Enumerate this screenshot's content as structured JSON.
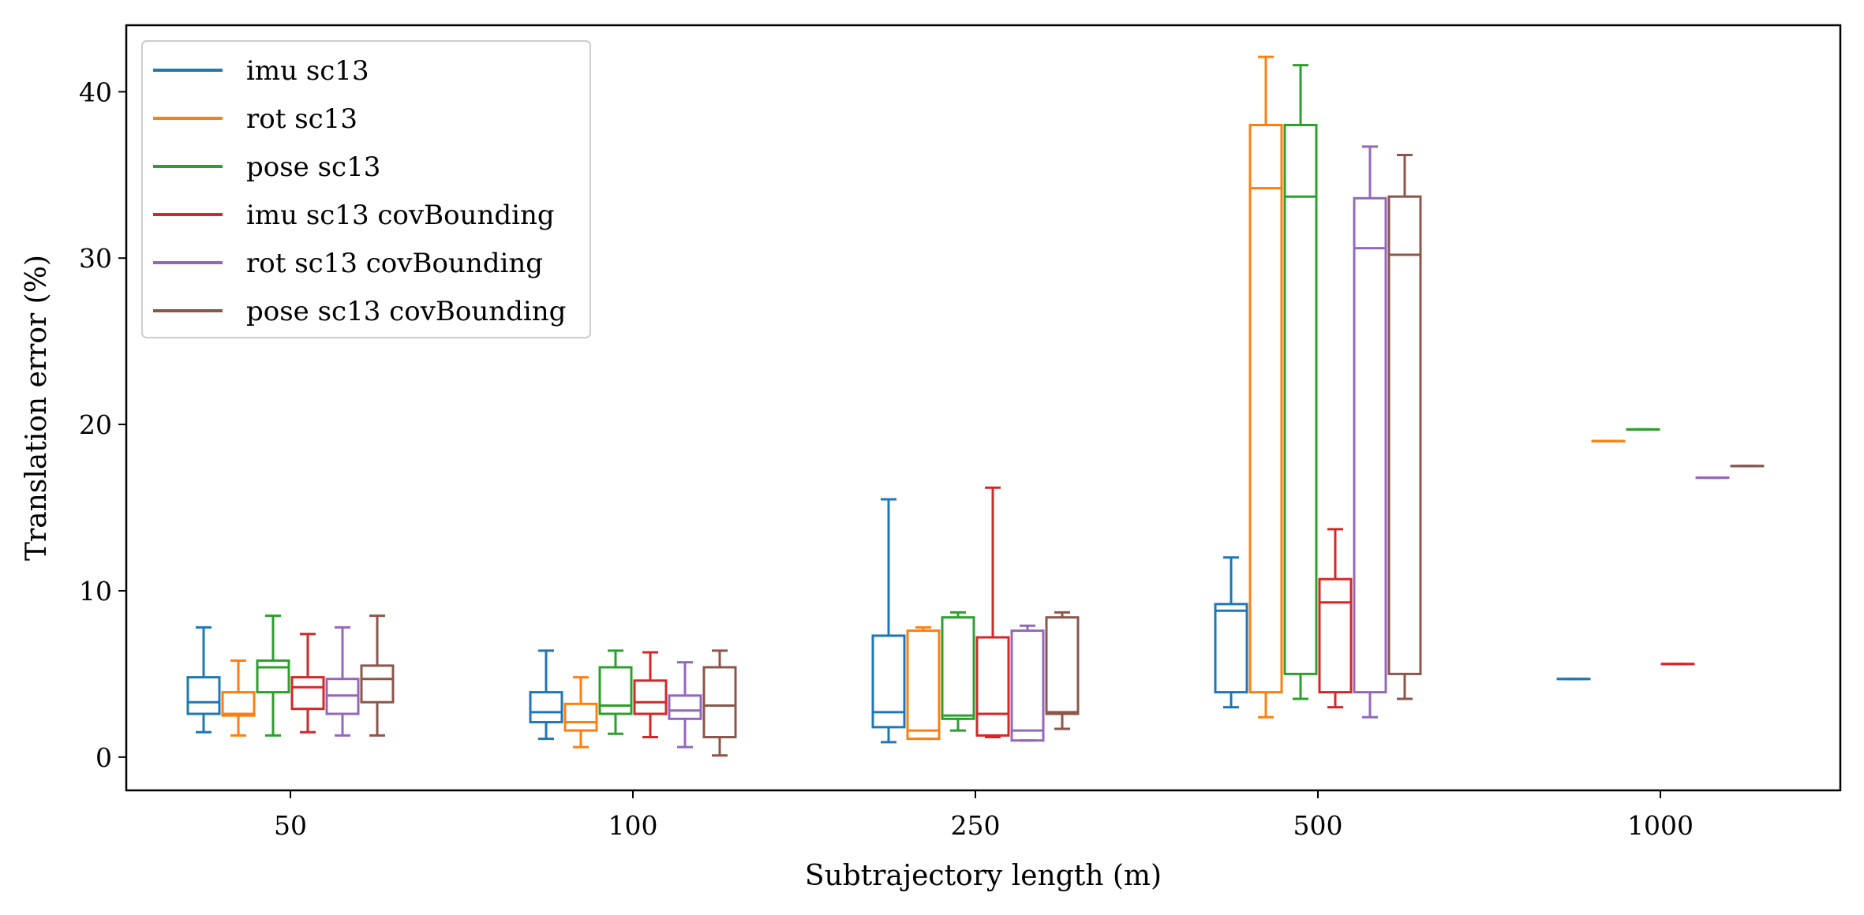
{
  "chart_data": {
    "type": "box",
    "xlabel": "Subtrajectory length (m)",
    "ylabel": "Translation error (%)",
    "categories": [
      "50",
      "100",
      "250",
      "500",
      "1000"
    ],
    "ylim": [
      -2,
      44
    ],
    "yticks": [
      0,
      10,
      20,
      30,
      40
    ],
    "grid": false,
    "legend_position": "top-left",
    "series": [
      {
        "name": "imu sc13",
        "color": "#1f77b4",
        "boxes": [
          {
            "whislo": 1.5,
            "q1": 2.6,
            "med": 3.3,
            "q3": 4.8,
            "whishi": 7.8
          },
          {
            "whislo": 1.1,
            "q1": 2.1,
            "med": 2.7,
            "q3": 3.9,
            "whishi": 6.4
          },
          {
            "whislo": 0.9,
            "q1": 1.8,
            "med": 2.7,
            "q3": 7.3,
            "whishi": 15.5
          },
          {
            "whislo": 3.0,
            "q1": 3.9,
            "med": 8.8,
            "q3": 9.2,
            "whishi": 12.0
          },
          {
            "whislo": 4.7,
            "q1": 4.7,
            "med": 4.7,
            "q3": 4.7,
            "whishi": 4.7
          }
        ]
      },
      {
        "name": "rot sc13",
        "color": "#ff7f0e",
        "boxes": [
          {
            "whislo": 1.3,
            "q1": 2.5,
            "med": 2.6,
            "q3": 3.9,
            "whishi": 5.8
          },
          {
            "whislo": 0.6,
            "q1": 1.6,
            "med": 2.1,
            "q3": 3.2,
            "whishi": 4.8
          },
          {
            "whislo": 1.1,
            "q1": 1.1,
            "med": 1.6,
            "q3": 7.6,
            "whishi": 7.8
          },
          {
            "whislo": 2.4,
            "q1": 3.9,
            "med": 34.2,
            "q3": 38.0,
            "whishi": 42.1
          },
          {
            "whislo": 19.0,
            "q1": 19.0,
            "med": 19.0,
            "q3": 19.0,
            "whishi": 19.0
          }
        ]
      },
      {
        "name": "pose sc13",
        "color": "#2ca02c",
        "boxes": [
          {
            "whislo": 1.3,
            "q1": 3.9,
            "med": 5.4,
            "q3": 5.8,
            "whishi": 8.5
          },
          {
            "whislo": 1.4,
            "q1": 2.6,
            "med": 3.1,
            "q3": 5.4,
            "whishi": 6.4
          },
          {
            "whislo": 1.6,
            "q1": 2.3,
            "med": 2.5,
            "q3": 8.4,
            "whishi": 8.7
          },
          {
            "whislo": 3.5,
            "q1": 5.0,
            "med": 33.7,
            "q3": 38.0,
            "whishi": 41.6
          },
          {
            "whislo": 19.7,
            "q1": 19.7,
            "med": 19.7,
            "q3": 19.7,
            "whishi": 19.7
          }
        ]
      },
      {
        "name": "imu sc13 covBounding",
        "color": "#d62728",
        "boxes": [
          {
            "whislo": 1.5,
            "q1": 2.9,
            "med": 4.2,
            "q3": 4.8,
            "whishi": 7.4
          },
          {
            "whislo": 1.2,
            "q1": 2.6,
            "med": 3.3,
            "q3": 4.6,
            "whishi": 6.3
          },
          {
            "whislo": 1.2,
            "q1": 1.3,
            "med": 2.6,
            "q3": 7.2,
            "whishi": 16.2
          },
          {
            "whislo": 3.0,
            "q1": 3.9,
            "med": 9.3,
            "q3": 10.7,
            "whishi": 13.7
          },
          {
            "whislo": 5.6,
            "q1": 5.6,
            "med": 5.6,
            "q3": 5.6,
            "whishi": 5.6
          }
        ]
      },
      {
        "name": "rot sc13 covBounding",
        "color": "#9467bd",
        "boxes": [
          {
            "whislo": 1.3,
            "q1": 2.6,
            "med": 3.7,
            "q3": 4.7,
            "whishi": 7.8
          },
          {
            "whislo": 0.6,
            "q1": 2.3,
            "med": 2.8,
            "q3": 3.7,
            "whishi": 5.7
          },
          {
            "whislo": 1.0,
            "q1": 1.0,
            "med": 1.6,
            "q3": 7.6,
            "whishi": 7.9
          },
          {
            "whislo": 2.4,
            "q1": 3.9,
            "med": 30.6,
            "q3": 33.6,
            "whishi": 36.7
          },
          {
            "whislo": 16.8,
            "q1": 16.8,
            "med": 16.8,
            "q3": 16.8,
            "whishi": 16.8
          }
        ]
      },
      {
        "name": "pose sc13 covBounding",
        "color": "#8c564b",
        "boxes": [
          {
            "whislo": 1.3,
            "q1": 3.3,
            "med": 4.7,
            "q3": 5.5,
            "whishi": 8.5
          },
          {
            "whislo": 0.1,
            "q1": 1.2,
            "med": 3.1,
            "q3": 5.4,
            "whishi": 6.4
          },
          {
            "whislo": 1.7,
            "q1": 2.6,
            "med": 2.7,
            "q3": 8.4,
            "whishi": 8.7
          },
          {
            "whislo": 3.5,
            "q1": 5.0,
            "med": 30.2,
            "q3": 33.7,
            "whishi": 36.2
          },
          {
            "whislo": 17.5,
            "q1": 17.5,
            "med": 17.5,
            "q3": 17.5,
            "whishi": 17.5
          }
        ]
      }
    ]
  }
}
